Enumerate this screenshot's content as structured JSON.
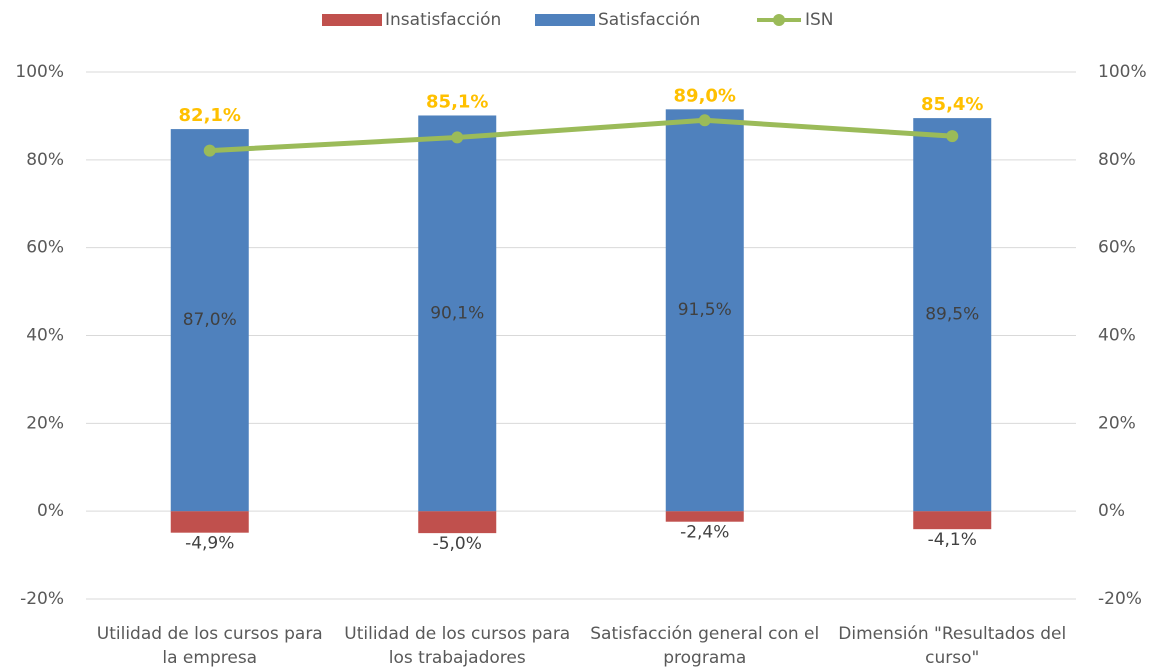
{
  "chart_data": {
    "type": "bar",
    "categories": [
      "Utilidad de los cursos para la empresa",
      "Utilidad de los cursos para los trabajadores",
      "Satisfacción general con el programa",
      "Dimensión \"Resultados del curso\""
    ],
    "series": [
      {
        "name": "Insatisfacción",
        "color": "#C0504D",
        "type": "bar",
        "values": [
          -4.9,
          -5.0,
          -2.4,
          -4.1
        ],
        "value_labels": [
          "-4,9%",
          "-5,0%",
          "-2,4%",
          "-4,1%"
        ]
      },
      {
        "name": "Satisfacción",
        "color": "#4F81BD",
        "type": "bar",
        "values": [
          87.0,
          90.1,
          91.5,
          89.5
        ],
        "value_labels": [
          "87,0%",
          "90,1%",
          "91,5%",
          "89,5%"
        ]
      },
      {
        "name": "ISN",
        "color": "#9BBB59",
        "type": "line",
        "label_color": "#FFC000",
        "values": [
          82.1,
          85.1,
          89.0,
          85.4
        ],
        "value_labels": [
          "82,1%",
          "85,1%",
          "89,0%",
          "85,4%"
        ]
      }
    ],
    "ylim": [
      -20,
      100
    ],
    "yticks": [
      {
        "value": -20,
        "label": "-20%"
      },
      {
        "value": 0,
        "label": "0%"
      },
      {
        "value": 20,
        "label": "20%"
      },
      {
        "value": 40,
        "label": "40%"
      },
      {
        "value": 60,
        "label": "60%"
      },
      {
        "value": 80,
        "label": "80%"
      },
      {
        "value": 100,
        "label": "100%"
      }
    ],
    "y2lim": [
      -20,
      100
    ],
    "y2ticks": [
      {
        "value": -20,
        "label": "-20%"
      },
      {
        "value": 0,
        "label": "0%"
      },
      {
        "value": 20,
        "label": "20%"
      },
      {
        "value": 40,
        "label": "40%"
      },
      {
        "value": 60,
        "label": "60%"
      },
      {
        "value": 80,
        "label": "80%"
      },
      {
        "value": 100,
        "label": "100%"
      }
    ],
    "grid": true,
    "legend": "top"
  }
}
